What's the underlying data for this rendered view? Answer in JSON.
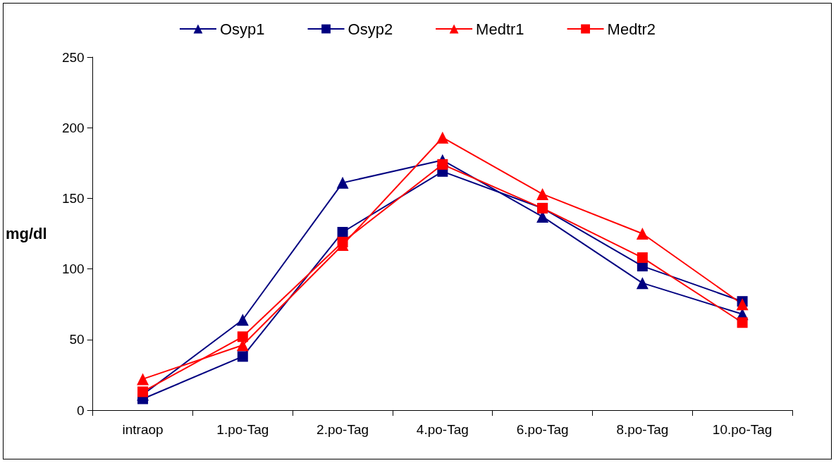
{
  "chart_data": {
    "type": "line",
    "ylabel": "mg/dl",
    "categories": [
      "intraop",
      "1.po-Tag",
      "2.po-Tag",
      "4.po-Tag",
      "6.po-Tag",
      "8.po-Tag",
      "10.po-Tag"
    ],
    "series": [
      {
        "name": "Osyp1",
        "color": "#000080",
        "marker": "triangle",
        "values": [
          11,
          64,
          161,
          177,
          137,
          90,
          68
        ]
      },
      {
        "name": "Osyp2",
        "color": "#000080",
        "marker": "square",
        "values": [
          8,
          38,
          126,
          169,
          143,
          102,
          77
        ]
      },
      {
        "name": "Medtr1",
        "color": "#ff0000",
        "marker": "triangle",
        "values": [
          22,
          46,
          117,
          193,
          153,
          125,
          75
        ]
      },
      {
        "name": "Medtr2",
        "color": "#ff0000",
        "marker": "square",
        "values": [
          13,
          52,
          119,
          174,
          143,
          108,
          62
        ]
      }
    ],
    "ylim": [
      0,
      250
    ],
    "yticks": [
      0,
      50,
      100,
      150,
      200,
      250
    ],
    "grid": false,
    "legend": "top",
    "line_style": "solid"
  }
}
